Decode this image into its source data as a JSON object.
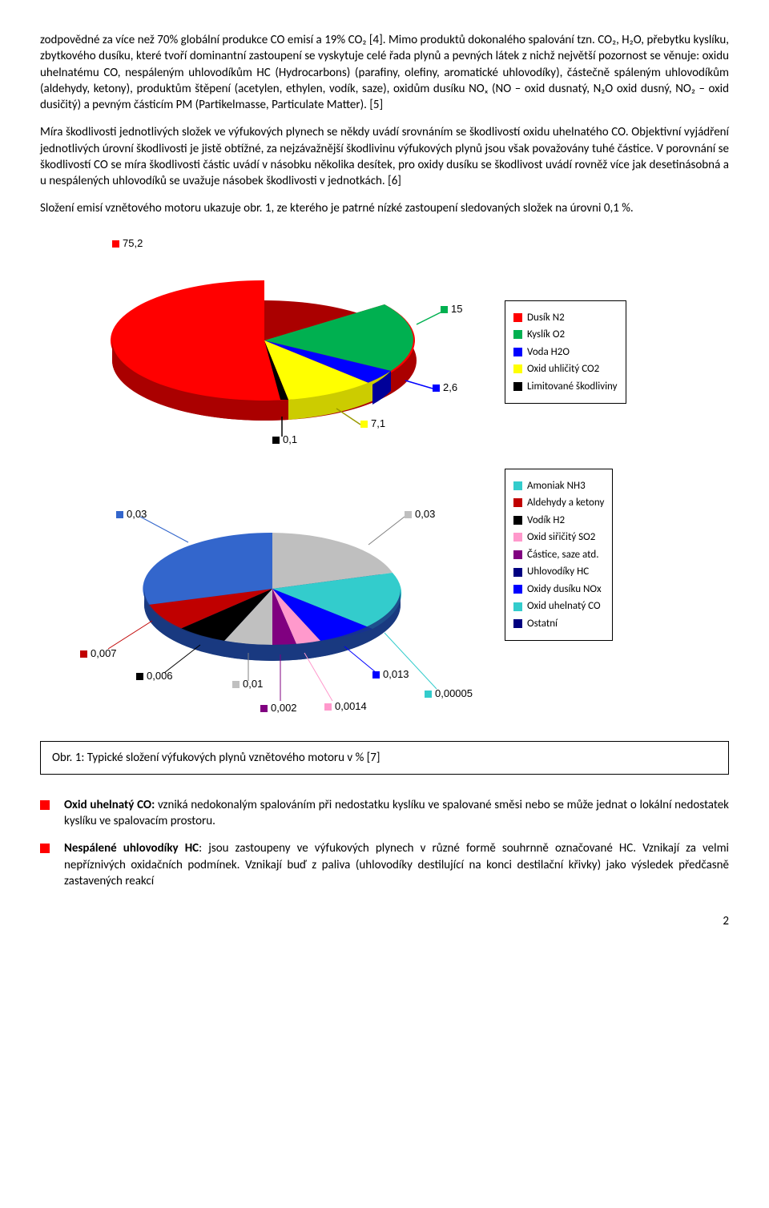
{
  "para1": "zodpovědné za více než 70% globální produkce CO emisí a 19% CO₂ [4]. Mimo produktů dokonalého spalování tzn. CO₂, H₂O, přebytku kyslíku, zbytkového dusíku, které tvoří dominantní zastoupení se vyskytuje celé řada plynů a pevných látek z nichž největší pozornost se věnuje: oxidu uhelnatému CO, nespáleným uhlovodíkům HC (Hydrocarbons) (parafiny, olefiny, aromatické uhlovodíky), částečně spáleným uhlovodíkům (aldehydy, ketony), produktům štěpení (acetylen, ethylen, vodík, saze), oxidům dusíku NOₓ (NO – oxid dusnatý, N₂O oxid dusný, NO₂ – oxid dusičitý) a pevným částicím PM (Partikelmasse, Particulate Matter). [5]",
  "para2": "Míra škodlivosti jednotlivých složek ve výfukových plynech se někdy uvádí srovnáním se škodlivostí oxidu uhelnatého CO. Objektivní vyjádření jednotlivých úrovní škodlivosti je jistě obtížné, za nejzávažnější škodlivinu výfukových plynů jsou však považovány tuhé částice. V porovnání se škodlivostí CO se míra škodlivosti částic uvádí v násobku několika desítek, pro oxidy dusíku se škodlivost uvádí rovněž více jak desetinásobná a u nespálených uhlovodíků se uvažuje násobek škodlivosti v jednotkách. [6]",
  "para3": "Složení emisí vznětového motoru ukazuje obr. 1, ze kterého je patrné nízké zastoupení sledovaných složek na úrovni 0,1 %.",
  "pie1": {
    "type": "pie-3d",
    "slices": [
      {
        "label": "75,2",
        "value": 75.2,
        "color": "#ff0000",
        "leaderColor": "#ff0000"
      },
      {
        "label": "15",
        "value": 15,
        "color": "#00b050",
        "leaderColor": "#00b050"
      },
      {
        "label": "2,6",
        "value": 2.6,
        "color": "#0000ff",
        "leaderColor": "#0000ff"
      },
      {
        "label": "7,1",
        "value": 7.1,
        "color": "#ffff00",
        "leaderColor": "#ffff00"
      },
      {
        "label": "0,1",
        "value": 0.1,
        "color": "#000000",
        "leaderColor": "#000000"
      }
    ],
    "legend": [
      {
        "label": "Dusík N2",
        "color": "#ff0000"
      },
      {
        "label": "Kyslík O2",
        "color": "#00b050"
      },
      {
        "label": "Voda H2O",
        "color": "#0000ff"
      },
      {
        "label": "Oxid uhličitý CO2",
        "color": "#ffff00"
      },
      {
        "label": "Limitované škodliviny",
        "color": "#000000"
      }
    ]
  },
  "pie2": {
    "type": "pie-3d",
    "slices": [
      {
        "label": "0,03",
        "value": 0.03,
        "color": "#3366cc"
      },
      {
        "label": "0,007",
        "value": 0.007,
        "color": "#c00000"
      },
      {
        "label": "0,006",
        "value": 0.006,
        "color": "#000000"
      },
      {
        "label": "0,01",
        "value": 0.01,
        "color": "#c0c0c0"
      },
      {
        "label": "0,002",
        "value": 0.002,
        "color": "#800080"
      },
      {
        "label": "0,0014",
        "value": 0.0014,
        "color": "#ff99cc"
      },
      {
        "label": "0,013",
        "value": 0.013,
        "color": "#0000ff"
      },
      {
        "label": "0,00005",
        "value": 5e-05,
        "color": "#33cccc"
      },
      {
        "label": "0,03",
        "value": 0.03,
        "color": "#bfbfbf"
      }
    ],
    "legend": [
      {
        "label": "Amoniak NH3",
        "color": "#33cccc"
      },
      {
        "label": "Aldehydy a ketony",
        "color": "#c00000"
      },
      {
        "label": "Vodík H2",
        "color": "#000000"
      },
      {
        "label": "Oxid siřičitý SO2",
        "color": "#ff99cc"
      },
      {
        "label": "Částice, saze atd.",
        "color": "#800080"
      },
      {
        "label": "Uhlovodíky HC",
        "color": "#000080"
      },
      {
        "label": "Oxidy dusíku NOx",
        "color": "#0000ff"
      },
      {
        "label": "Oxid uhelnatý CO",
        "color": "#33cccc"
      },
      {
        "label": "Ostatní",
        "color": "#000080"
      }
    ]
  },
  "caption": "Obr. 1:  Typické složení výfukových plynů vznětového motoru v % [7]",
  "bullet1_bold": "Oxid uhelnatý CO:",
  "bullet1_rest": " vzniká nedokonalým spalováním při nedostatku kyslíku ve spalované směsi nebo se může jednat o lokální nedostatek kyslíku ve spalovacím prostoru.",
  "bullet2_bold": "Nespálené uhlovodíky HC",
  "bullet2_rest": ": jsou zastoupeny ve výfukových plynech v různé formě souhrnně označované HC. Vznikají za velmi nepříznivých oxidačních podmínek. Vznikají buď z paliva (uhlovodíky destilující na konci destilační křivky) jako výsledek předčasně zastavených reakcí",
  "pageNum": "2"
}
